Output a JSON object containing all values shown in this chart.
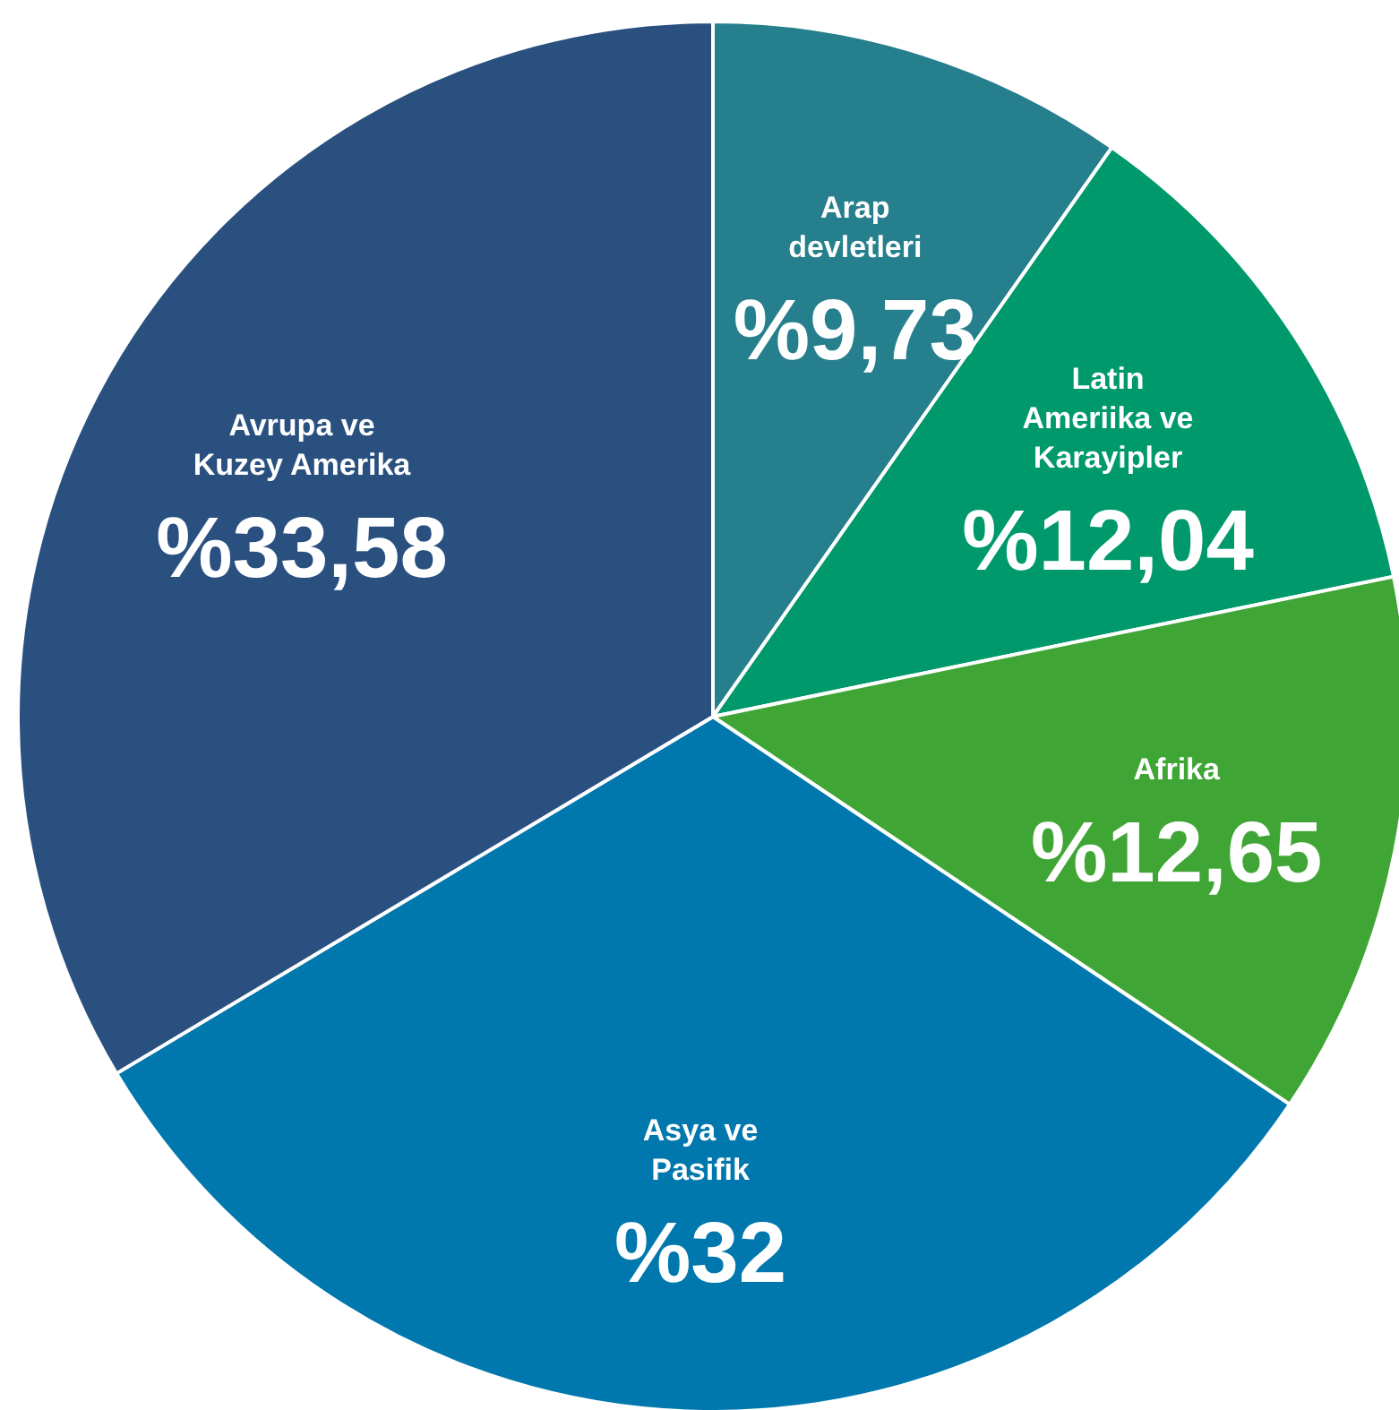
{
  "chart_data": {
    "type": "pie",
    "categories": [
      "Arap devletleri",
      "Latin Ameriika ve Karayipler",
      "Afrika",
      "Asya ve Pasifik",
      "Avrupa ve Kuzey Amerika"
    ],
    "values": [
      9.73,
      12.04,
      12.65,
      32,
      33.58
    ],
    "value_labels": [
      "%9,73",
      "%12,04",
      "%12,65",
      "%32",
      "%33,58"
    ],
    "colors": [
      "#267f8c",
      "#00996b",
      "#3fa535",
      "#0078ae",
      "#2a5080"
    ],
    "legend": false
  }
}
